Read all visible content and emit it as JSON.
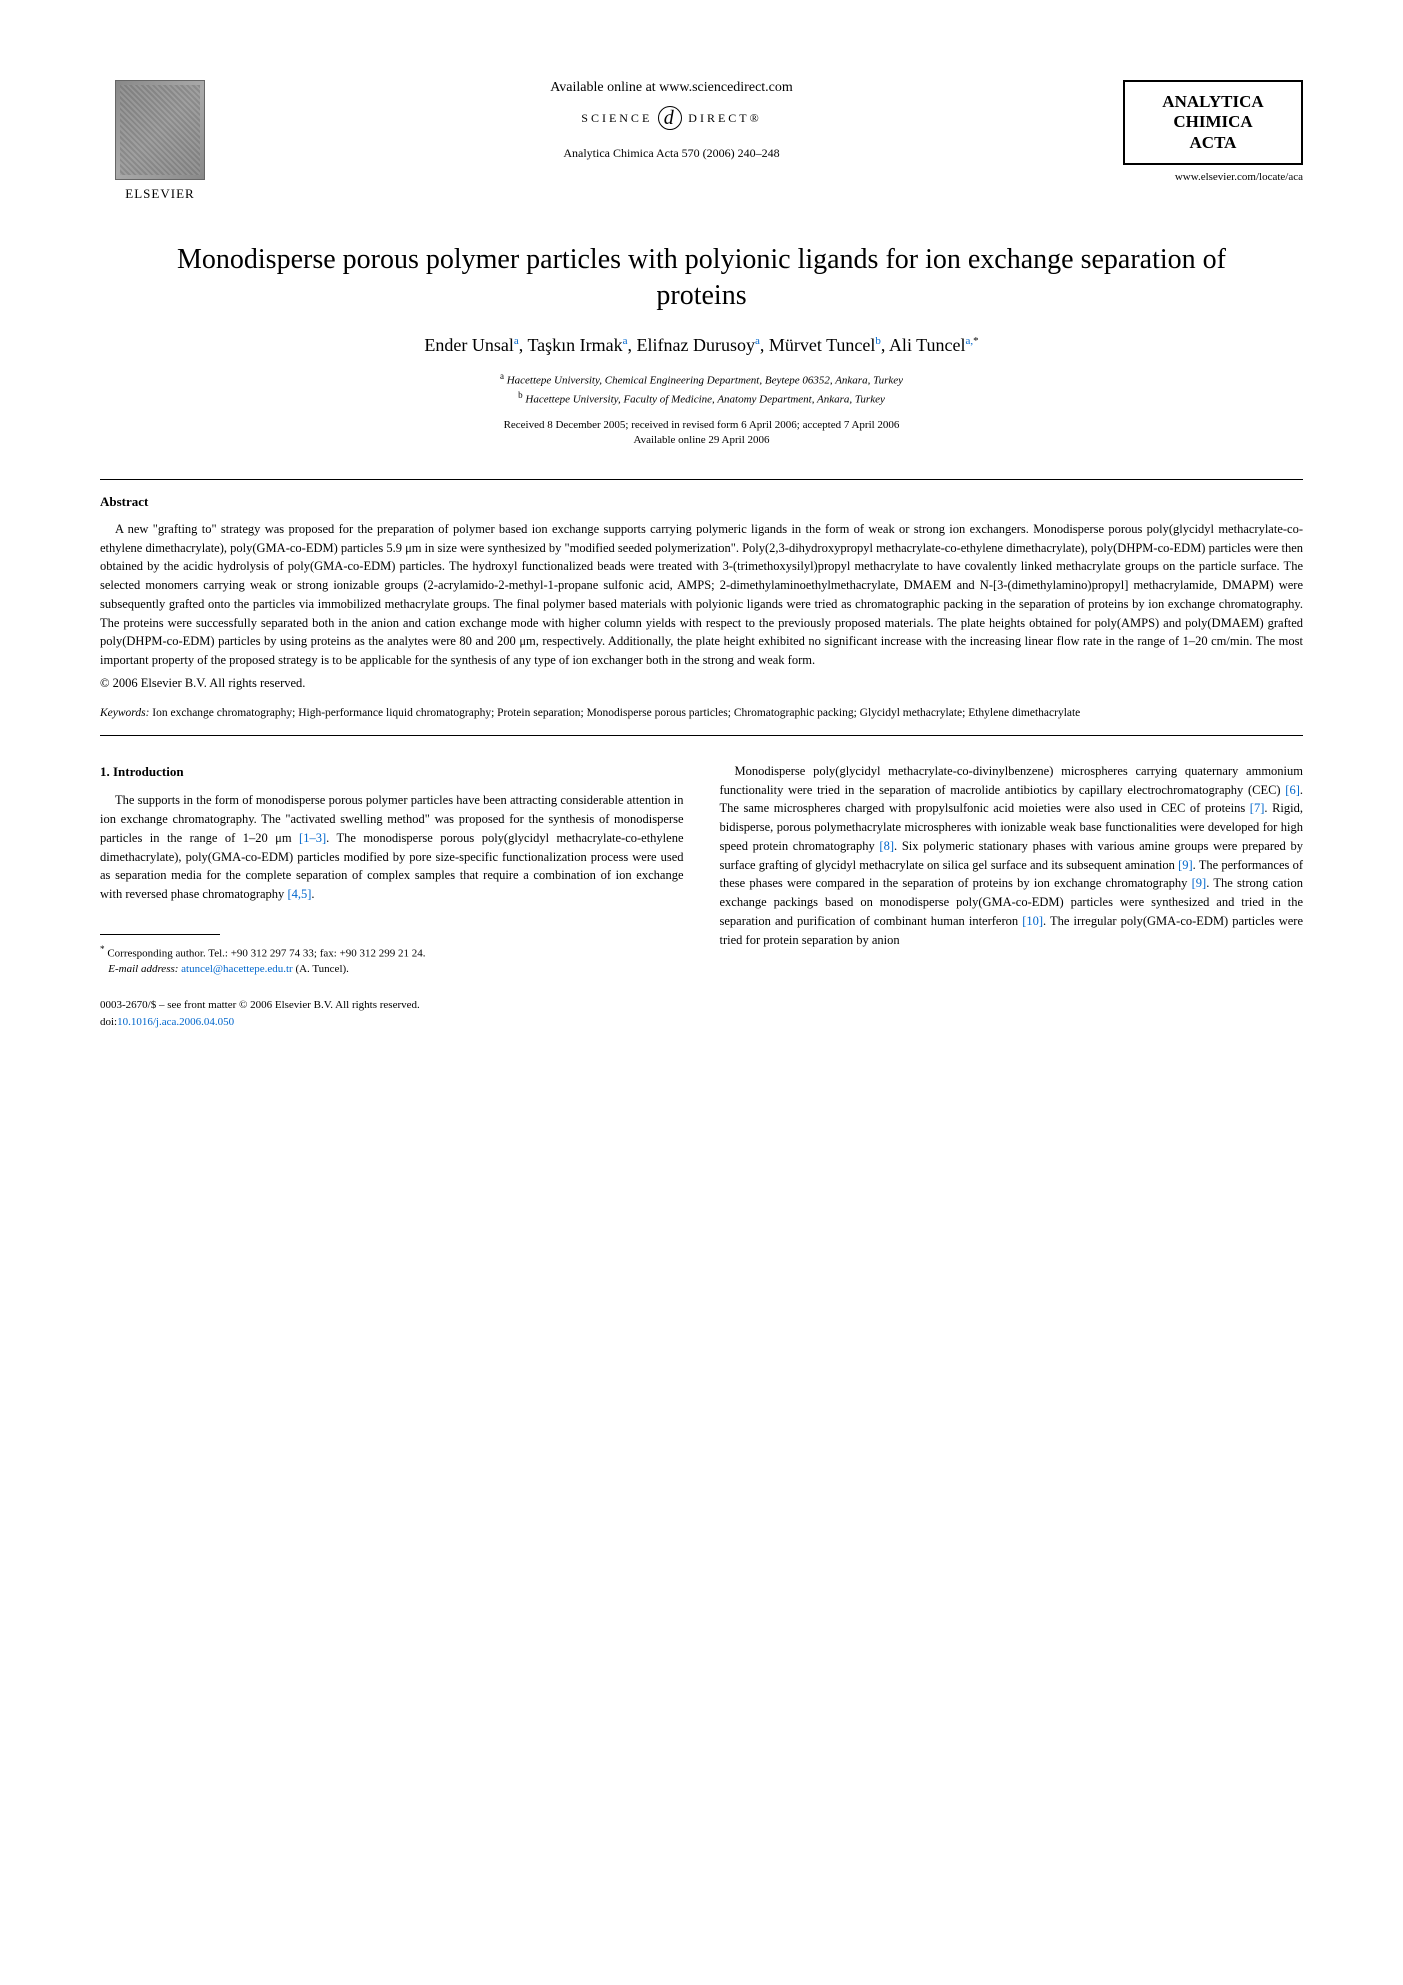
{
  "header": {
    "elsevier_label": "ELSEVIER",
    "available_online": "Available online at www.sciencedirect.com",
    "sciencedirect_text_left": "SCIENCE",
    "sciencedirect_text_right": "DIRECT®",
    "citation": "Analytica Chimica Acta 570 (2006) 240–248",
    "journal_box_line1": "ANALYTICA",
    "journal_box_line2": "CHIMICA",
    "journal_box_line3": "ACTA",
    "journal_url": "www.elsevier.com/locate/aca"
  },
  "title": "Monodisperse porous polymer particles with polyionic ligands for ion exchange separation of proteins",
  "authors": {
    "a1": "Ender Unsal",
    "s1": "a",
    "a2": "Taşkın Irmak",
    "s2": "a",
    "a3": "Elifnaz Durusoy",
    "s3": "a",
    "a4": "Mürvet Tuncel",
    "s4": "b",
    "a5": "Ali Tuncel",
    "s5": "a,",
    "star": "*"
  },
  "affiliations": {
    "a_label": "a",
    "a_text": "Hacettepe University, Chemical Engineering Department, Beytepe 06352, Ankara, Turkey",
    "b_label": "b",
    "b_text": "Hacettepe University, Faculty of Medicine, Anatomy Department, Ankara, Turkey"
  },
  "dates": {
    "line1": "Received 8 December 2005; received in revised form 6 April 2006; accepted 7 April 2006",
    "line2": "Available online 29 April 2006"
  },
  "abstract": {
    "heading": "Abstract",
    "text": "A new \"grafting to\" strategy was proposed for the preparation of polymer based ion exchange supports carrying polymeric ligands in the form of weak or strong ion exchangers. Monodisperse porous poly(glycidyl methacrylate-co-ethylene dimethacrylate), poly(GMA-co-EDM) particles 5.9 μm in size were synthesized by \"modified seeded polymerization\". Poly(2,3-dihydroxypropyl methacrylate-co-ethylene dimethacrylate), poly(DHPM-co-EDM) particles were then obtained by the acidic hydrolysis of poly(GMA-co-EDM) particles. The hydroxyl functionalized beads were treated with 3-(trimethoxysilyl)propyl methacrylate to have covalently linked methacrylate groups on the particle surface. The selected monomers carrying weak or strong ionizable groups (2-acrylamido-2-methyl-1-propane sulfonic acid, AMPS; 2-dimethylaminoethylmethacrylate, DMAEM and N-[3-(dimethylamino)propyl] methacrylamide, DMAPM) were subsequently grafted onto the particles via immobilized methacrylate groups. The final polymer based materials with polyionic ligands were tried as chromatographic packing in the separation of proteins by ion exchange chromatography. The proteins were successfully separated both in the anion and cation exchange mode with higher column yields with respect to the previously proposed materials. The plate heights obtained for poly(AMPS) and poly(DMAEM) grafted poly(DHPM-co-EDM) particles by using proteins as the analytes were 80 and 200 μm, respectively. Additionally, the plate height exhibited no significant increase with the increasing linear flow rate in the range of 1–20 cm/min. The most important property of the proposed strategy is to be applicable for the synthesis of any type of ion exchanger both in the strong and weak form.",
    "copyright": "© 2006 Elsevier B.V. All rights reserved."
  },
  "keywords": {
    "label": "Keywords:",
    "text": "Ion exchange chromatography; High-performance liquid chromatography; Protein separation; Monodisperse porous particles; Chromatographic packing; Glycidyl methacrylate; Ethylene dimethacrylate"
  },
  "intro": {
    "heading": "1. Introduction",
    "col1": {
      "p1a": "The supports in the form of monodisperse porous polymer particles have been attracting considerable attention in ion exchange chromatography. The \"activated swelling method\" was proposed for the synthesis of monodisperse particles in the range of 1–20 μm ",
      "ref1": "[1–3]",
      "p1b": ". The monodisperse porous poly(glycidyl methacrylate-co-ethylene dimethacrylate), poly(GMA-co-EDM) particles modified by pore size-specific functionalization process were used as separation media for the complete separation of complex samples that require a combination of ion exchange with reversed phase chromatography ",
      "ref2": "[4,5]",
      "p1c": "."
    },
    "col2": {
      "p1a": "Monodisperse poly(glycidyl methacrylate-co-divinylbenzene) microspheres carrying quaternary ammonium functionality were tried in the separation of macrolide antibiotics by capillary electrochromatography (CEC) ",
      "ref6": "[6]",
      "p1b": ". The same microspheres charged with propylsulfonic acid moieties were also used in CEC of proteins ",
      "ref7": "[7]",
      "p1c": ". Rigid, bidisperse, porous polymethacrylate microspheres with ionizable weak base functionalities were developed for high speed protein chromatography ",
      "ref8": "[8]",
      "p1d": ". Six polymeric stationary phases with various amine groups were prepared by surface grafting of glycidyl methacrylate on silica gel surface and its subsequent amination ",
      "ref9a": "[9]",
      "p1e": ". The performances of these phases were compared in the separation of proteins by ion exchange chromatography ",
      "ref9b": "[9]",
      "p1f": ". The strong cation exchange packings based on monodisperse poly(GMA-co-EDM) particles were synthesized and tried in the separation and purification of combinant human interferon ",
      "ref10": "[10]",
      "p1g": ". The irregular poly(GMA-co-EDM) particles were tried for protein separation by anion"
    }
  },
  "footnote": {
    "star": "*",
    "corr_label": "Corresponding author. Tel.: +90 312 297 74 33; fax: +90 312 299 21 24.",
    "email_label": "E-mail address:",
    "email": "atuncel@hacettepe.edu.tr",
    "email_name": "(A. Tuncel)."
  },
  "footer": {
    "line1": "0003-2670/$ – see front matter © 2006 Elsevier B.V. All rights reserved.",
    "doi_prefix": "doi:",
    "doi": "10.1016/j.aca.2006.04.050"
  }
}
